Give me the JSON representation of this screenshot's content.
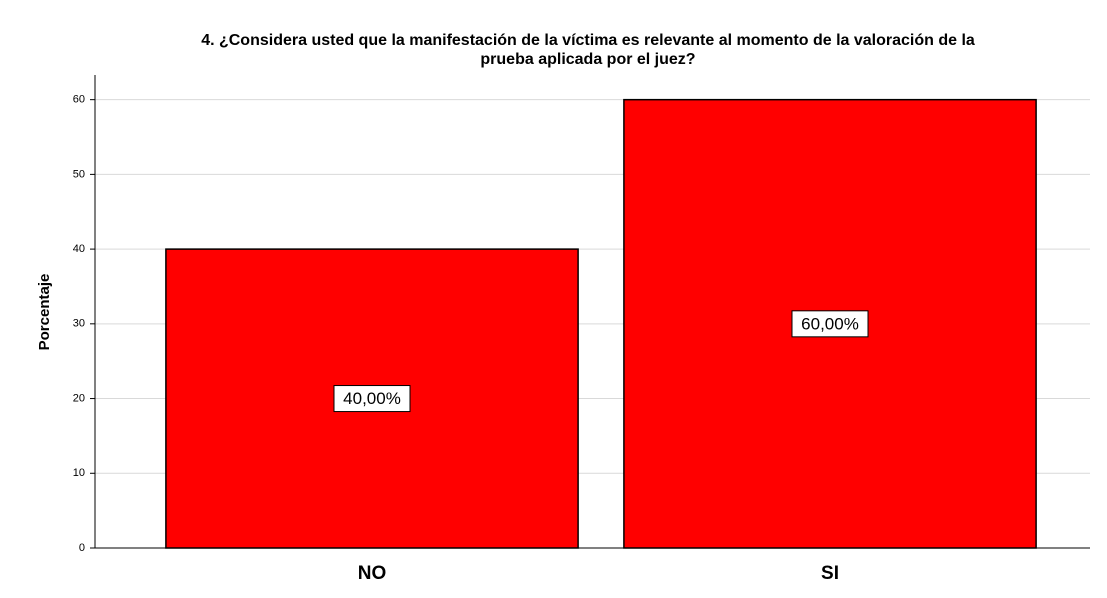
{
  "chart_data": {
    "type": "bar",
    "title": [
      "4.      ¿Considera usted que la manifestación de la víctima es relevante al momento de la valoración de la",
      "prueba aplicada por el juez?"
    ],
    "y_label": "Porcentaje",
    "categories": [
      "NO",
      "SI"
    ],
    "values": [
      40,
      60
    ],
    "value_labels": [
      "40,00%",
      "60,00%"
    ],
    "color": "#ff0000",
    "ylim": [
      0,
      63.3
    ],
    "yticks": [
      0,
      10,
      20,
      30,
      40,
      50,
      60
    ],
    "grid": true
  }
}
